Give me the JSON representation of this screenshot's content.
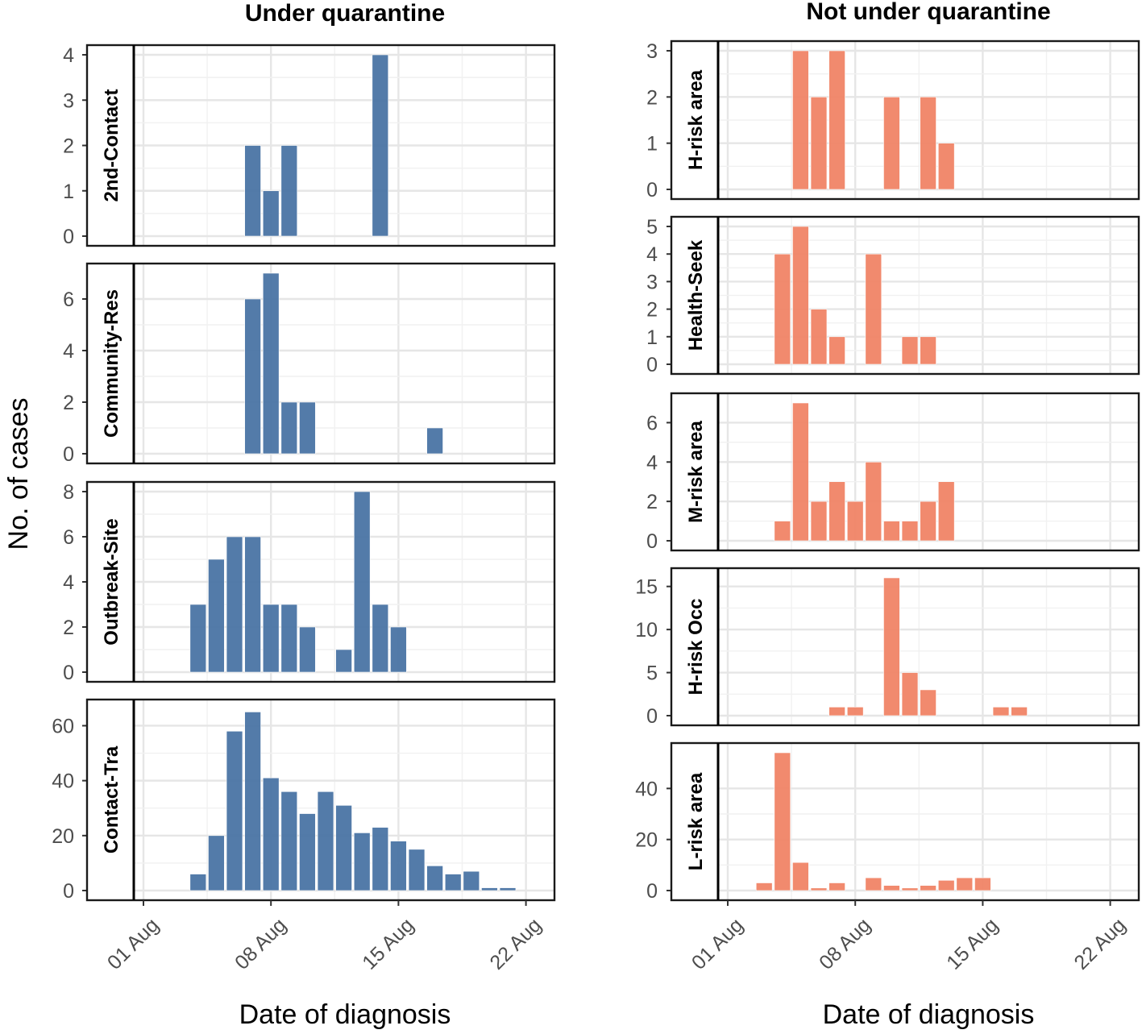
{
  "y_axis_title": "No. of cases",
  "chart_data": [
    {
      "type": "bar",
      "title": "Under quarantine",
      "xlabel": "Date of diagnosis",
      "ylabel": "No. of cases",
      "x_tick_labels": [
        "01 Aug",
        "08 Aug",
        "15 Aug",
        "22 Aug"
      ],
      "bar_color": "#4a74a4",
      "panels": [
        {
          "label": "2nd-Contact",
          "ylim": [
            0,
            4
          ],
          "yticks": [
            0,
            1,
            2,
            3,
            4
          ],
          "days": [
            6,
            7,
            8,
            13
          ],
          "values": [
            2,
            1,
            2,
            4
          ]
        },
        {
          "label": "Community-Res",
          "ylim": [
            0,
            7
          ],
          "yticks": [
            0,
            2,
            4,
            6
          ],
          "days": [
            6,
            7,
            8,
            9,
            16
          ],
          "values": [
            6,
            7,
            2,
            2,
            1
          ]
        },
        {
          "label": "Outbreak-Site",
          "ylim": [
            0,
            8
          ],
          "yticks": [
            0,
            2,
            4,
            6,
            8
          ],
          "days": [
            3,
            4,
            5,
            6,
            7,
            8,
            9,
            11,
            12,
            13,
            14
          ],
          "values": [
            3,
            5,
            6,
            6,
            3,
            3,
            2,
            1,
            8,
            3,
            2
          ]
        },
        {
          "label": "Contact-Tra",
          "ylim": [
            0,
            66
          ],
          "yticks": [
            0,
            20,
            40,
            60
          ],
          "days": [
            3,
            4,
            5,
            6,
            7,
            8,
            9,
            10,
            11,
            12,
            13,
            14,
            15,
            16,
            17,
            18,
            19,
            20
          ],
          "values": [
            6,
            20,
            58,
            65,
            41,
            36,
            28,
            36,
            31,
            21,
            23,
            18,
            15,
            9,
            6,
            7,
            1,
            1
          ]
        }
      ]
    },
    {
      "type": "bar",
      "title": "Not under quarantine",
      "xlabel": "Date of diagnosis",
      "ylabel": "No. of cases",
      "x_tick_labels": [
        "01 Aug",
        "08 Aug",
        "15 Aug",
        "22 Aug"
      ],
      "bar_color": "#f08466",
      "panels": [
        {
          "label": "H-risk area",
          "ylim": [
            0,
            3
          ],
          "yticks": [
            0,
            1,
            2,
            3
          ],
          "days": [
            4,
            5,
            6,
            9,
            11,
            12
          ],
          "values": [
            3,
            2,
            3,
            2,
            2,
            1
          ]
        },
        {
          "label": "Health-Seek",
          "ylim": [
            0,
            5
          ],
          "yticks": [
            0,
            1,
            2,
            3,
            4,
            5
          ],
          "days": [
            3,
            4,
            5,
            6,
            8,
            10,
            11
          ],
          "values": [
            4,
            5,
            2,
            1,
            4,
            1,
            1
          ]
        },
        {
          "label": "M-risk area",
          "ylim": [
            0,
            7
          ],
          "yticks": [
            0,
            2,
            4,
            6
          ],
          "days": [
            3,
            4,
            5,
            6,
            7,
            8,
            9,
            10,
            11,
            12
          ],
          "values": [
            1,
            7,
            2,
            3,
            2,
            4,
            1,
            1,
            2,
            3
          ]
        },
        {
          "label": "H-risk Occ",
          "ylim": [
            0,
            16
          ],
          "yticks": [
            0,
            5,
            10,
            15
          ],
          "days": [
            6,
            7,
            9,
            10,
            11,
            15,
            16
          ],
          "values": [
            1,
            1,
            16,
            5,
            3,
            1,
            1
          ]
        },
        {
          "label": "L-risk area",
          "ylim": [
            0,
            54
          ],
          "yticks": [
            0,
            20,
            40
          ],
          "days": [
            2,
            3,
            4,
            5,
            6,
            8,
            9,
            10,
            11,
            12,
            13,
            14
          ],
          "values": [
            3,
            54,
            11,
            1,
            3,
            5,
            2,
            1,
            2,
            4,
            5,
            5
          ]
        }
      ]
    }
  ]
}
